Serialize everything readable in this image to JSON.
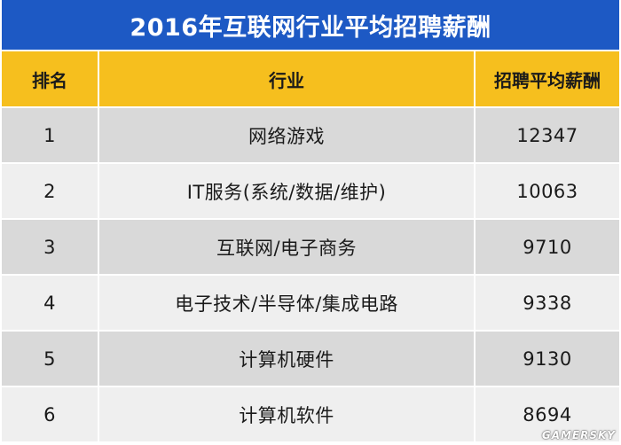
{
  "title": "2016年互联网行业平均招聘薪酬",
  "columns": {
    "rank": "排名",
    "industry": "行业",
    "salary": "招聘平均薪酬"
  },
  "rows": [
    {
      "rank": "1",
      "industry": "网络游戏",
      "salary": "12347"
    },
    {
      "rank": "2",
      "industry": "IT服务(系统/数据/维护)",
      "salary": "10063"
    },
    {
      "rank": "3",
      "industry": "互联网/电子商务",
      "salary": "9710"
    },
    {
      "rank": "4",
      "industry": "电子技术/半导体/集成电路",
      "salary": "9338"
    },
    {
      "rank": "5",
      "industry": "计算机硬件",
      "salary": "9130"
    },
    {
      "rank": "6",
      "industry": "计算机软件",
      "salary": "8694"
    }
  ],
  "watermark": "GAMERSKY",
  "colors": {
    "title_bg": "#1d59c4",
    "header_bg": "#f6bf1e",
    "row_dark": "#d9d9d9",
    "row_light": "#efefef"
  }
}
